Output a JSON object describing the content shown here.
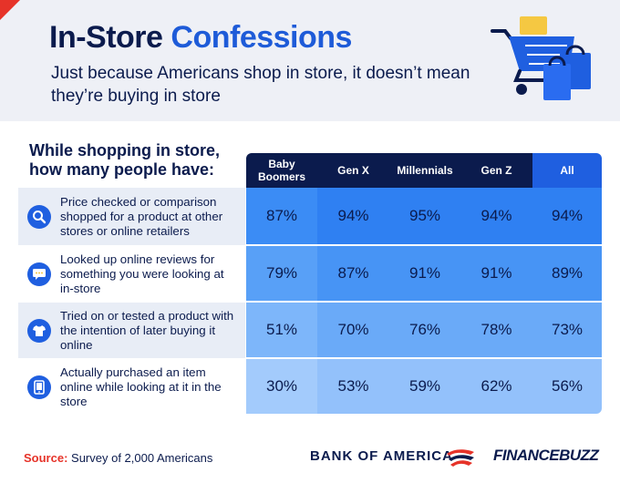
{
  "header": {
    "title_part1": "In-Store",
    "title_part2": "Confessions",
    "subtitle": "Just because Americans shop in store, it doesn’t mean they’re buying in store"
  },
  "question": {
    "line1": "While shopping in store,",
    "line2": "how many people have:"
  },
  "colors": {
    "navy": "#0b1b4d",
    "accent_blue": "#1f5fe0",
    "red": "#e63329"
  },
  "chart_data": {
    "type": "table",
    "columns": [
      "Baby Boomers",
      "Gen X",
      "Millennials",
      "Gen Z",
      "All"
    ],
    "rows": [
      {
        "label": "Price checked or comparison shopped for a product at other stores or online retailers",
        "icon": "search-icon",
        "values": [
          "87%",
          "94%",
          "95%",
          "94%",
          "94%"
        ]
      },
      {
        "label": "Looked up online reviews for something you were looking at in-store",
        "icon": "review-chat-icon",
        "values": [
          "79%",
          "87%",
          "91%",
          "91%",
          "89%"
        ]
      },
      {
        "label": "Tried on or tested a product with the intention of later buying it online",
        "icon": "tshirt-icon",
        "values": [
          "51%",
          "70%",
          "76%",
          "78%",
          "73%"
        ]
      },
      {
        "label": "Actually purchased an item online while looking at it in the store",
        "icon": "mobile-phone-icon",
        "values": [
          "30%",
          "53%",
          "59%",
          "62%",
          "56%"
        ]
      }
    ]
  },
  "footer": {
    "source_label": "Source:",
    "source_text": "Survey of 2,000 Americans",
    "logo1": "BANK OF AMERICA",
    "logo2_part1": "FINANCE",
    "logo2_part2": "BUZZ"
  }
}
